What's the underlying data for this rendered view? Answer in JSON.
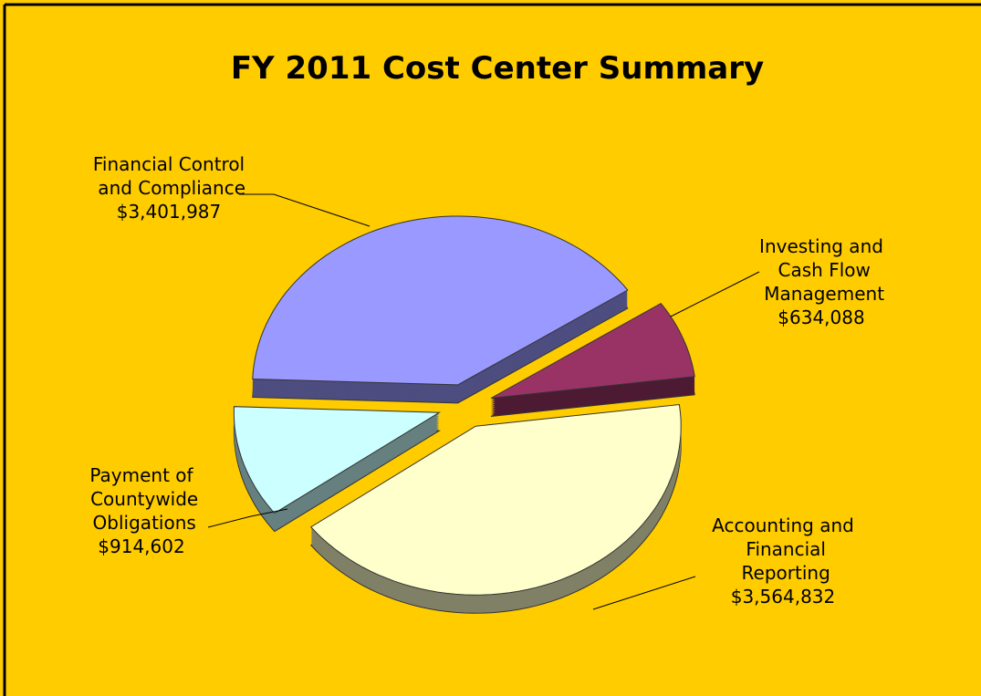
{
  "chart_data": {
    "type": "pie",
    "title": "FY 2011 Cost Center Summary",
    "categories": [
      "Financial Control and Compliance",
      "Investing and Cash Flow Management",
      "Accounting and Financial Reporting",
      "Payment of Countywide Obligations"
    ],
    "values": [
      3401987,
      634088,
      3564832,
      914602
    ],
    "value_labels": [
      "$3,401,987",
      "$634,088",
      "$3,564,832",
      "$914,602"
    ],
    "colors": [
      "#9999ff",
      "#993366",
      "#ffffcc",
      "#ccffff"
    ],
    "background": "#ffcc00"
  }
}
